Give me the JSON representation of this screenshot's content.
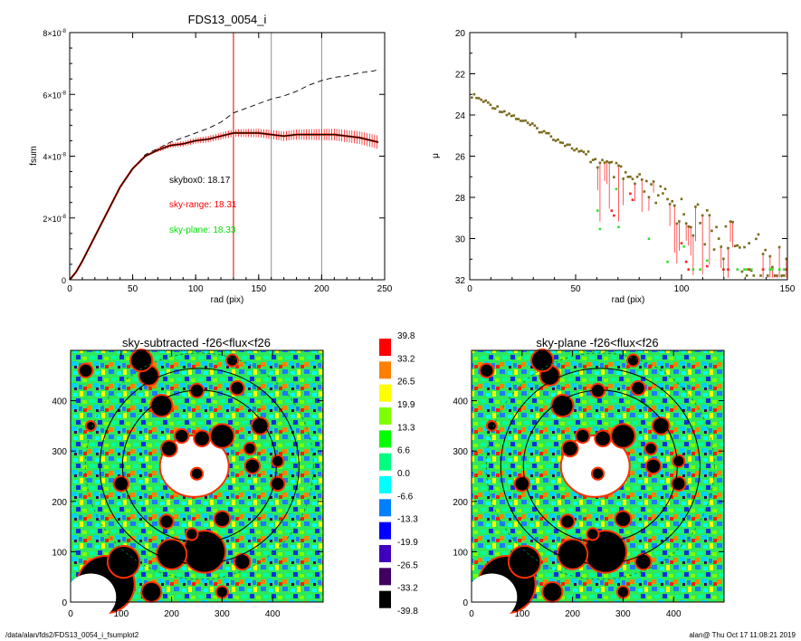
{
  "footer": {
    "left": "/data/alan/fds2/FDS13_0054_i_fsumplot2",
    "right": "alan@  Thu Oct 17 11:08:21 2019"
  },
  "colorbar": {
    "labels": [
      "39.8",
      "33.2",
      "26.5",
      "19.9",
      "13.3",
      "6.6",
      "0.0",
      "-6.6",
      "-13.3",
      "-19.9",
      "-26.5",
      "-33.2",
      "-39.8"
    ],
    "colors": [
      "#ff0000",
      "#ff7f00",
      "#ffff00",
      "#80ff00",
      "#00ff00",
      "#00ff80",
      "#00ffff",
      "#0080ff",
      "#0000ff",
      "#4000c0",
      "#3f005f",
      "#000000"
    ]
  },
  "chart_data": [
    {
      "type": "line",
      "title": "FDS13_0054_i",
      "xlabel": "rad (pix)",
      "ylabel": "fsum",
      "xlim": [
        0,
        250
      ],
      "ylim": [
        0,
        8e-08
      ],
      "xticks": [
        "0",
        "50",
        "100",
        "150",
        "200",
        "250"
      ],
      "yticks": [
        {
          "base": "0",
          "exp": ""
        },
        {
          "base": "2×10",
          "exp": "-8"
        },
        {
          "base": "4×10",
          "exp": "-8"
        },
        {
          "base": "6×10",
          "exp": "-8"
        },
        {
          "base": "8×10",
          "exp": "-8"
        }
      ],
      "vlines": [
        {
          "x": 130,
          "color": "#e00000"
        },
        {
          "x": 160,
          "color": "#909090"
        },
        {
          "x": 200,
          "color": "#909090"
        }
      ],
      "annotations": [
        {
          "text": "skybox0: 18.17",
          "color": "#000000"
        },
        {
          "text": "sky-range: 18.31",
          "color": "#ff0000"
        },
        {
          "text": "sky-plane: 18.33",
          "color": "#00dd00"
        }
      ],
      "series": [
        {
          "style": "dashed",
          "color": "#000000",
          "x": [
            0,
            5,
            10,
            20,
            30,
            40,
            50,
            60,
            70,
            80,
            90,
            100,
            110,
            120,
            130,
            140,
            150,
            160,
            170,
            180,
            190,
            200,
            210,
            220,
            230,
            240,
            245
          ],
          "y": [
            0,
            2.5e-09,
            6e-09,
            1.4e-08,
            2.2e-08,
            3e-08,
            3.6e-08,
            4.05e-08,
            4.25e-08,
            4.45e-08,
            4.6e-08,
            4.75e-08,
            4.9e-08,
            5.1e-08,
            5.4e-08,
            5.55e-08,
            5.7e-08,
            5.85e-08,
            5.95e-08,
            6.1e-08,
            6.3e-08,
            6.45e-08,
            6.55e-08,
            6.6e-08,
            6.7e-08,
            6.75e-08,
            6.8e-08
          ]
        },
        {
          "style": "errorbar",
          "color": "#ff0000",
          "x": [
            0,
            5,
            10,
            20,
            30,
            40,
            50,
            60,
            70,
            80,
            90,
            100,
            110,
            120,
            130,
            140,
            150,
            160,
            170,
            180,
            190,
            200,
            210,
            220,
            230,
            240,
            245
          ],
          "y": [
            0,
            2.5e-09,
            6e-09,
            1.4e-08,
            2.2e-08,
            3e-08,
            3.6e-08,
            4e-08,
            4.2e-08,
            4.35e-08,
            4.4e-08,
            4.5e-08,
            4.55e-08,
            4.65e-08,
            4.75e-08,
            4.75e-08,
            4.75e-08,
            4.7e-08,
            4.65e-08,
            4.7e-08,
            4.7e-08,
            4.7e-08,
            4.7e-08,
            4.65e-08,
            4.6e-08,
            4.5e-08,
            4.45e-08
          ]
        },
        {
          "style": "solid",
          "color": "#00c000",
          "x": [
            0,
            5,
            10,
            20,
            30,
            40,
            50,
            60,
            70,
            80,
            90,
            100,
            110,
            120,
            130,
            140,
            150,
            160,
            170,
            180,
            190,
            200,
            210,
            220,
            230,
            240,
            245
          ],
          "y": [
            0,
            2.5e-09,
            6e-09,
            1.4e-08,
            2.2e-08,
            3e-08,
            3.6e-08,
            4e-08,
            4.2e-08,
            4.35e-08,
            4.4e-08,
            4.5e-08,
            4.55e-08,
            4.65e-08,
            4.75e-08,
            4.75e-08,
            4.75e-08,
            4.7e-08,
            4.65e-08,
            4.7e-08,
            4.7e-08,
            4.7e-08,
            4.7e-08,
            4.65e-08,
            4.6e-08,
            4.5e-08,
            4.45e-08
          ]
        },
        {
          "style": "solid",
          "color": "#000000",
          "x": [
            0,
            5,
            10,
            20,
            30,
            40,
            50,
            60,
            70,
            80,
            90,
            100,
            110,
            120,
            130,
            140,
            150,
            160,
            170,
            180,
            190,
            200,
            210,
            220,
            230,
            240,
            245
          ],
          "y": [
            0,
            2.5e-09,
            6e-09,
            1.4e-08,
            2.2e-08,
            3e-08,
            3.6e-08,
            4e-08,
            4.2e-08,
            4.35e-08,
            4.4e-08,
            4.5e-08,
            4.55e-08,
            4.65e-08,
            4.75e-08,
            4.75e-08,
            4.75e-08,
            4.7e-08,
            4.65e-08,
            4.7e-08,
            4.7e-08,
            4.7e-08,
            4.7e-08,
            4.65e-08,
            4.6e-08,
            4.5e-08,
            4.45e-08
          ]
        }
      ]
    },
    {
      "type": "scatter",
      "title": "",
      "xlabel": "rad (pix)",
      "ylabel": "μ",
      "xlim": [
        0,
        150
      ],
      "ylim": [
        32,
        20
      ],
      "xticks": [
        "0",
        "50",
        "100",
        "150"
      ],
      "yticks": [
        "20",
        "22",
        "24",
        "26",
        "28",
        "30",
        "32"
      ]
    },
    {
      "type": "heatmap",
      "title": "sky-subtracted -f26<flux<f26",
      "xlim": [
        0,
        500
      ],
      "ylim": [
        0,
        500
      ],
      "xticks": [
        "0",
        "100",
        "200",
        "300",
        "400"
      ],
      "yticks": [
        "0",
        "100",
        "200",
        "300",
        "400"
      ]
    },
    {
      "type": "heatmap",
      "title": "sky-plane -f26<flux<f26",
      "xlim": [
        0,
        500
      ],
      "ylim": [
        0,
        500
      ],
      "xticks": [
        "0",
        "100",
        "200",
        "300",
        "400"
      ],
      "yticks": [
        "0",
        "100",
        "200",
        "300",
        "400"
      ]
    }
  ]
}
